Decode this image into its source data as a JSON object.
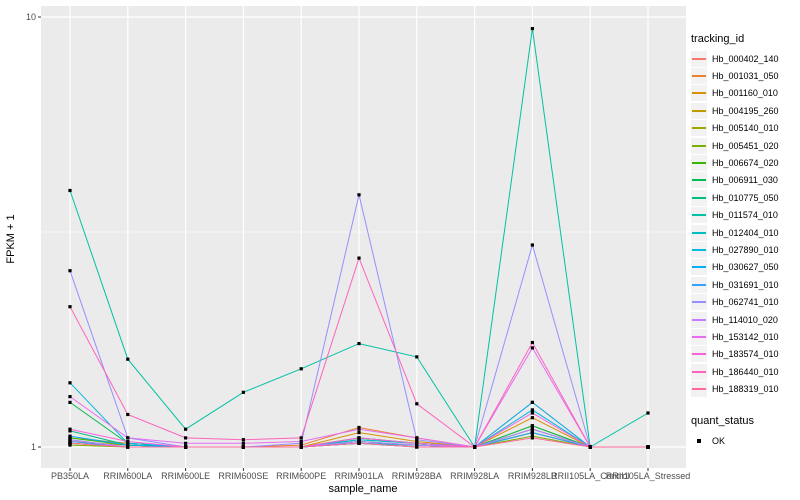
{
  "figure": {
    "background": "#FFFFFF",
    "panel_background": "#EBEBEB",
    "gridline_color": "#FFFFFF",
    "tick_label_color": "#4D4D4D",
    "tick_mark_color": "#333333",
    "point_color": "#000000",
    "legend_key_background": "#F2F2F2"
  },
  "chart_data": {
    "type": "line",
    "title": "",
    "xlabel": "sample_name",
    "ylabel": "FPKM + 1",
    "y_scale": "log10",
    "grid": true,
    "legend_position": "right",
    "ylim": [
      0.93,
      10.6
    ],
    "y_ticks": [
      {
        "label": "1",
        "value": 1
      },
      {
        "label": "10",
        "value": 10
      }
    ],
    "y_minor_ticks": [
      3.1623
    ],
    "categories": [
      "PB350LA",
      "RRIM600LA",
      "RRIM600LE",
      "RRIM600SE",
      "RRIM600PE",
      "RRIM901LA",
      "RRIM928BA",
      "RRIM928LA",
      "RRIM928LB",
      "RRII105LA_Control",
      "RRII105LA_Stressed"
    ],
    "series": [
      {
        "name": "Hb_000402_140",
        "color": "#F8766D",
        "values": [
          1.02,
          1.0,
          1.0,
          1.0,
          1.0,
          1.02,
          1.01,
          1.0,
          1.08,
          1.0,
          1.0
        ]
      },
      {
        "name": "Hb_001031_050",
        "color": "#EA8331",
        "values": [
          1.05,
          1.02,
          1.0,
          1.0,
          1.01,
          1.11,
          1.05,
          1.0,
          1.27,
          1.0,
          1.0
        ]
      },
      {
        "name": "Hb_001160_010",
        "color": "#D89000",
        "values": [
          1.03,
          1.01,
          1.0,
          1.0,
          1.0,
          1.08,
          1.03,
          1.0,
          1.17,
          1.0,
          1.0
        ]
      },
      {
        "name": "Hb_004195_260",
        "color": "#C09B00",
        "values": [
          1.02,
          1.0,
          1.0,
          1.0,
          1.0,
          1.05,
          1.02,
          1.0,
          1.12,
          1.0,
          1.0
        ]
      },
      {
        "name": "Hb_005140_010",
        "color": "#A3A500",
        "values": [
          1.02,
          1.0,
          1.0,
          1.0,
          1.0,
          1.03,
          1.01,
          1.0,
          1.08,
          1.0,
          1.0
        ]
      },
      {
        "name": "Hb_005451_020",
        "color": "#7CAE00",
        "values": [
          1.01,
          1.0,
          1.0,
          1.0,
          1.0,
          1.02,
          1.0,
          1.0,
          1.06,
          1.0,
          1.0
        ]
      },
      {
        "name": "Hb_006674_020",
        "color": "#39B600",
        "values": [
          1.05,
          1.01,
          1.0,
          1.0,
          1.0,
          1.04,
          1.02,
          1.0,
          1.1,
          1.0,
          1.0
        ]
      },
      {
        "name": "Hb_006911_030",
        "color": "#00BB4E",
        "values": [
          1.27,
          1.02,
          1.0,
          1.0,
          1.0,
          1.05,
          1.02,
          1.0,
          1.12,
          1.0,
          1.0
        ]
      },
      {
        "name": "Hb_010775_050",
        "color": "#00BF7D",
        "values": [
          1.09,
          1.01,
          1.0,
          1.0,
          1.0,
          1.03,
          1.01,
          1.0,
          1.08,
          1.0,
          1.0
        ]
      },
      {
        "name": "Hb_011574_010",
        "color": "#00C1A3",
        "values": [
          3.95,
          1.6,
          1.1,
          1.34,
          1.52,
          1.74,
          1.62,
          1.0,
          9.4,
          1.0,
          1.2
        ]
      },
      {
        "name": "Hb_012404_010",
        "color": "#00BFC4",
        "values": [
          1.04,
          1.0,
          1.0,
          1.0,
          1.0,
          1.02,
          1.01,
          1.0,
          1.1,
          1.0,
          1.0
        ]
      },
      {
        "name": "Hb_027890_010",
        "color": "#00BAE0",
        "values": [
          1.41,
          1.02,
          1.0,
          1.0,
          1.0,
          1.04,
          1.02,
          1.0,
          1.22,
          1.0,
          1.0
        ]
      },
      {
        "name": "Hb_030627_050",
        "color": "#00B0F6",
        "values": [
          1.06,
          1.01,
          1.0,
          1.0,
          1.0,
          1.03,
          1.01,
          1.0,
          1.27,
          1.0,
          1.0
        ]
      },
      {
        "name": "Hb_031691_010",
        "color": "#35A2FF",
        "values": [
          1.03,
          1.0,
          1.0,
          1.0,
          1.0,
          1.02,
          1.0,
          1.0,
          1.08,
          1.0,
          1.0
        ]
      },
      {
        "name": "Hb_062741_010",
        "color": "#9590FF",
        "values": [
          2.57,
          1.05,
          1.0,
          1.0,
          1.02,
          3.86,
          1.04,
          1.0,
          2.95,
          1.0,
          1.0
        ]
      },
      {
        "name": "Hb_114010_020",
        "color": "#C77CFF",
        "values": [
          1.04,
          1.0,
          1.0,
          1.0,
          1.0,
          1.03,
          1.01,
          1.0,
          1.1,
          1.0,
          1.0
        ]
      },
      {
        "name": "Hb_153142_010",
        "color": "#E76BF3",
        "values": [
          1.31,
          1.05,
          1.02,
          1.02,
          1.03,
          1.1,
          1.05,
          1.0,
          1.7,
          1.0,
          1.0
        ]
      },
      {
        "name": "Hb_183574_010",
        "color": "#FA62DB",
        "values": [
          1.1,
          1.03,
          1.0,
          1.0,
          1.0,
          1.05,
          1.02,
          1.0,
          1.2,
          1.0,
          1.0
        ]
      },
      {
        "name": "Hb_186440_010",
        "color": "#FF62BC",
        "values": [
          2.12,
          1.19,
          1.05,
          1.04,
          1.05,
          2.75,
          1.26,
          1.0,
          1.75,
          1.0,
          1.0
        ]
      },
      {
        "name": "Hb_188319_010",
        "color": "#FF6A98",
        "values": [
          1.02,
          1.0,
          1.0,
          1.0,
          1.0,
          1.02,
          1.0,
          1.0,
          1.05,
          1.0,
          1.0
        ]
      }
    ],
    "legend": {
      "tracking_title": "tracking_id",
      "quant_title": "quant_status",
      "quant_entries": [
        {
          "label": "OK",
          "shape": "square",
          "color": "#000000"
        }
      ]
    }
  }
}
